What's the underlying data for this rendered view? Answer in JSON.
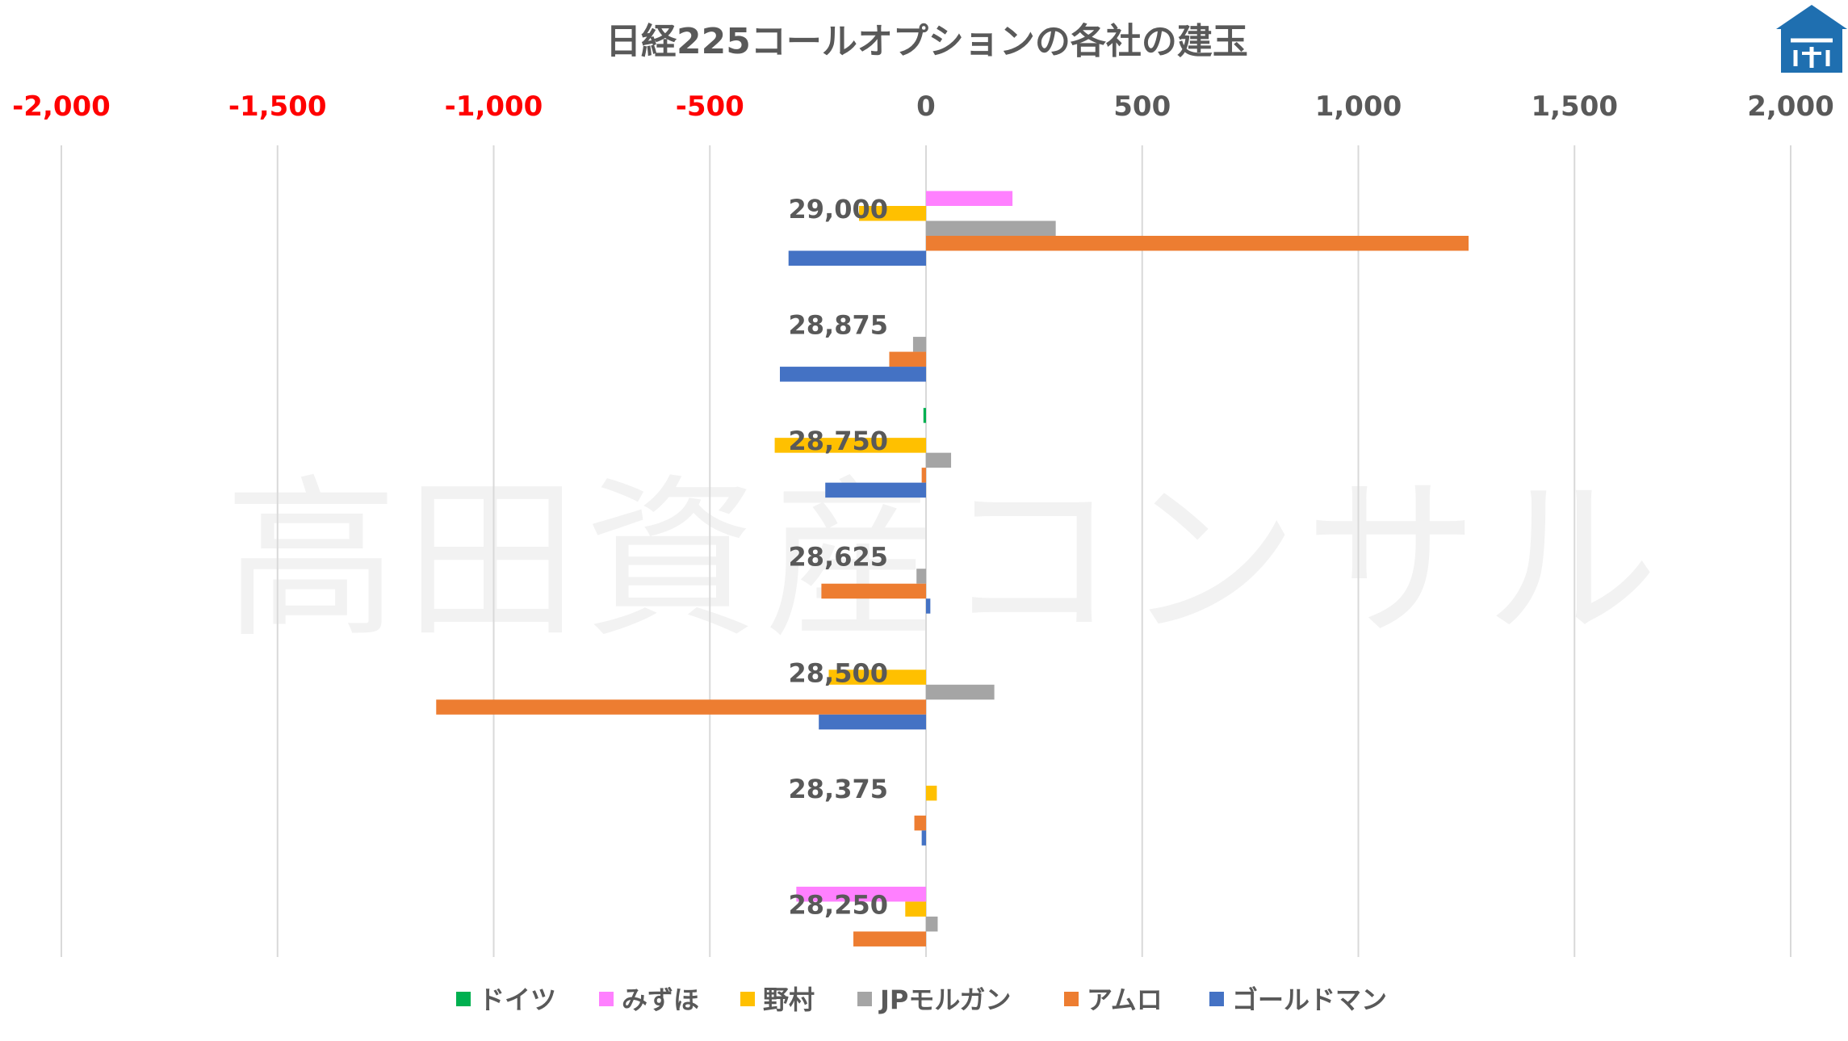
{
  "watermark": "高田資産コンサル",
  "chart_data": {
    "type": "bar",
    "orientation": "horizontal",
    "title": "日経225コールオプションの各社の建玉",
    "xlim": [
      -2000,
      2000
    ],
    "x_ticks": [
      {
        "value": -2000,
        "label": "-2,000"
      },
      {
        "value": -1500,
        "label": "-1,500"
      },
      {
        "value": -1000,
        "label": "-1,000"
      },
      {
        "value": -500,
        "label": "-500"
      },
      {
        "value": 0,
        "label": "0"
      },
      {
        "value": 500,
        "label": "500"
      },
      {
        "value": 1000,
        "label": "1,000"
      },
      {
        "value": 1500,
        "label": "1,500"
      },
      {
        "value": 2000,
        "label": "2,000"
      }
    ],
    "negative_tick_color": "#ff0000",
    "positive_tick_color": "#595959",
    "axis_position": "top",
    "grid": true,
    "legend_position": "bottom",
    "categories": [
      "29,000",
      "28,875",
      "28,750",
      "28,625",
      "28,500",
      "28,375",
      "28,250"
    ],
    "series": [
      {
        "name": "ドイツ",
        "color": "#00b050",
        "values": [
          0,
          0,
          -6,
          0,
          0,
          0,
          0
        ]
      },
      {
        "name": "みずほ",
        "color": "#ff80ff",
        "values": [
          200,
          0,
          0,
          0,
          0,
          0,
          -300
        ]
      },
      {
        "name": "野村",
        "color": "#ffc000",
        "values": [
          -155,
          0,
          -350,
          0,
          -225,
          25,
          -48
        ]
      },
      {
        "name": "JPモルガン",
        "color": "#a5a5a5",
        "values": [
          300,
          -30,
          58,
          -22,
          158,
          0,
          27
        ]
      },
      {
        "name": "アムロ",
        "color": "#ed7d31",
        "values": [
          1255,
          -85,
          -10,
          -242,
          -1133,
          -27,
          -168
        ]
      },
      {
        "name": "ゴールドマン",
        "color": "#4472c4",
        "values": [
          -318,
          -338,
          -233,
          10,
          -248,
          -10,
          0
        ]
      }
    ]
  },
  "logo": {
    "name": "logo-icon",
    "color": "#1f6fb0"
  }
}
